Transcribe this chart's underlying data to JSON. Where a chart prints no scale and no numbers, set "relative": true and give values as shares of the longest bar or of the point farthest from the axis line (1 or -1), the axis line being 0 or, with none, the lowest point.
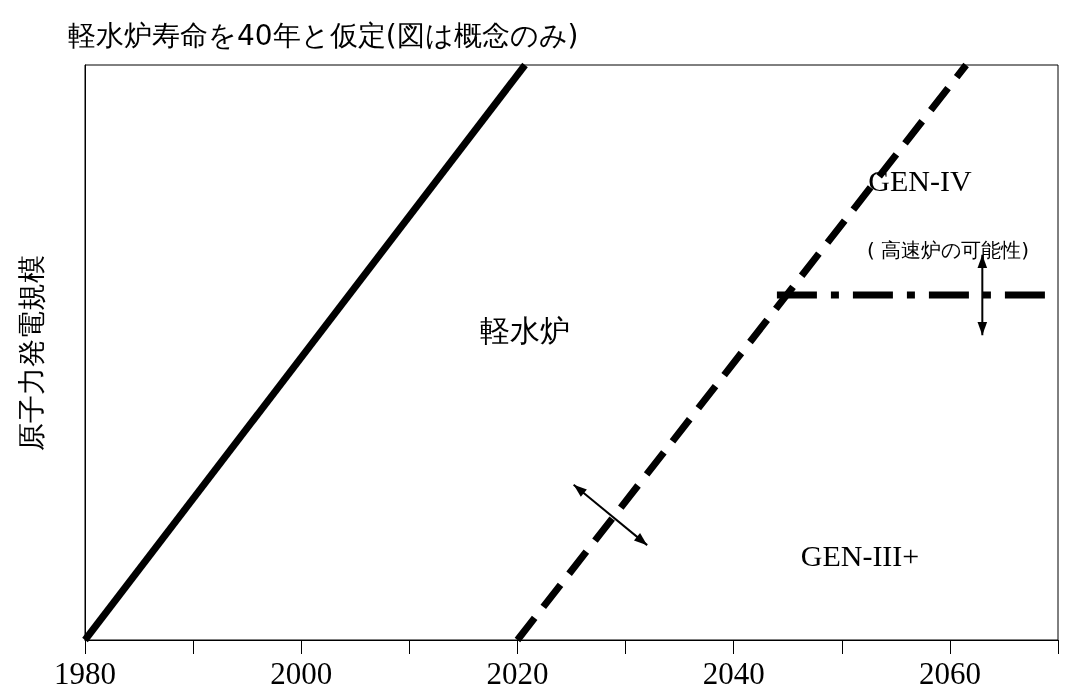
{
  "chart_data": {
    "type": "line",
    "title": "軽水炉寿命を40年と仮定(図は概念のみ)",
    "ylabel": "原子力発電規模",
    "relative": true,
    "grid": false,
    "marker": "none",
    "xlim": [
      1980,
      2070
    ],
    "xticks": [
      1980,
      {
        "value": 1990,
        "label": null
      },
      2000,
      {
        "value": 2010,
        "label": null
      },
      2020,
      {
        "value": 2030,
        "label": null
      },
      2040,
      {
        "value": 2050,
        "label": null
      },
      2060,
      {
        "value": 2070,
        "label": null
      }
    ],
    "series": [
      {
        "color": "#000000",
        "line_style": "solid",
        "x": [
          1980,
          2020.7
        ],
        "values": [
          0,
          1
        ]
      },
      {
        "color": "#000000",
        "line_style": "dashed",
        "x": [
          2020,
          2061.5
        ],
        "values": [
          0,
          1
        ]
      },
      {
        "color": "#000000",
        "line_style": "dashdot",
        "x": [
          2044,
          2070
        ],
        "values": [
          0.6,
          0.6
        ]
      }
    ],
    "annotations": [
      "軽水炉",
      "GEN-IV",
      "( 高速炉の可能性)",
      "GEN-III+"
    ]
  }
}
